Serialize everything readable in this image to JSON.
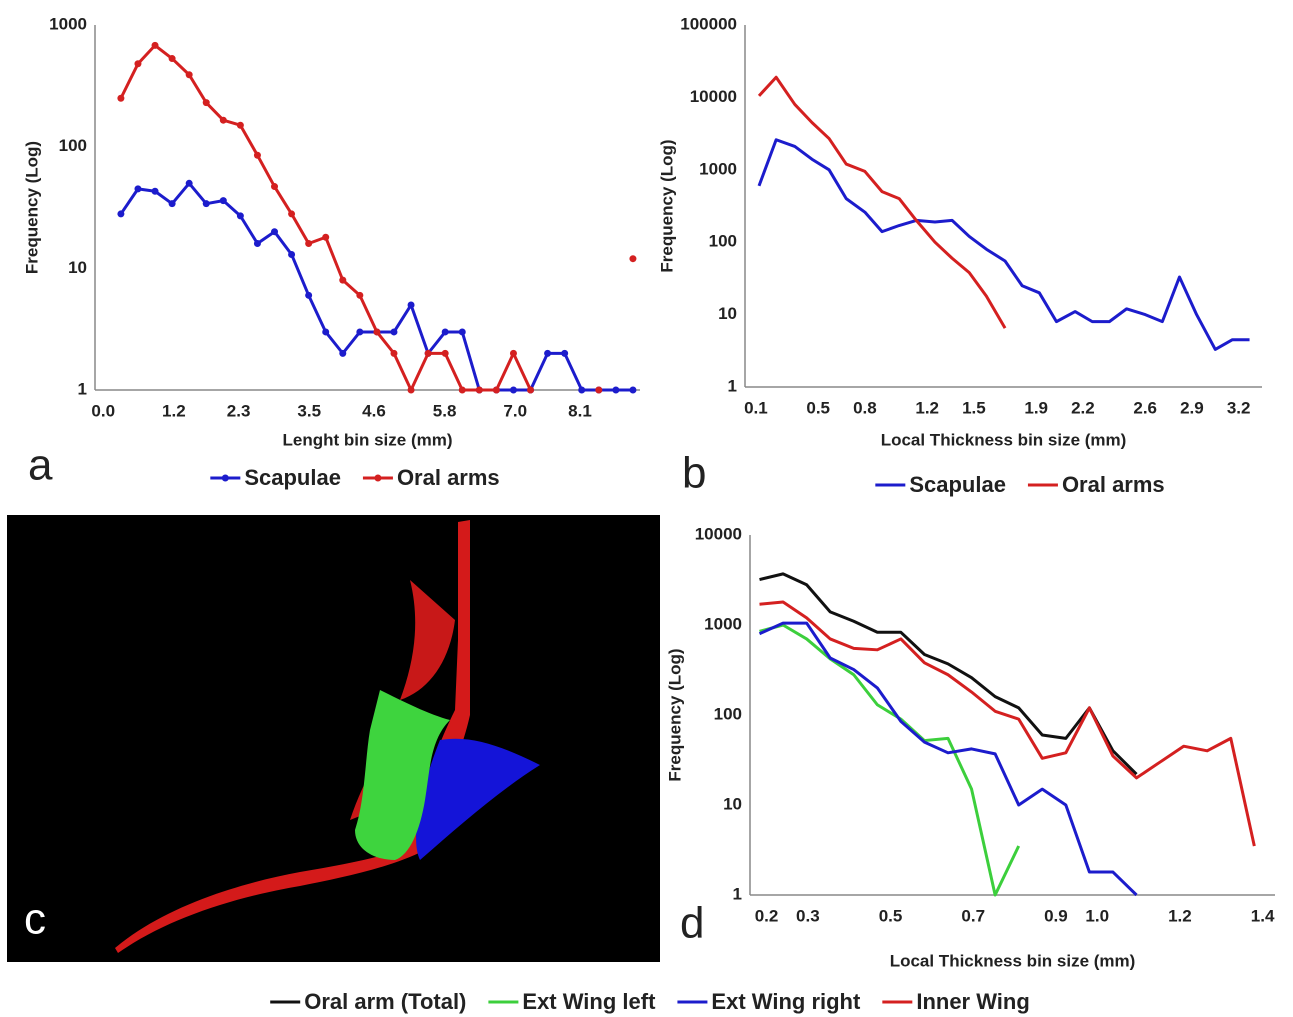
{
  "chart_data": [
    {
      "type": "line",
      "panel_label": "a",
      "y_label": "Frequency (Log)",
      "x_label": "Lenght bin size (mm)",
      "log_y": true,
      "markers": true,
      "x": [
        0.3,
        0.59,
        0.88,
        1.17,
        1.46,
        1.75,
        2.04,
        2.33,
        2.62,
        2.91,
        3.2,
        3.49,
        3.78,
        4.07,
        4.36,
        4.65,
        4.94,
        5.23,
        5.52,
        5.81,
        6.1,
        6.39,
        6.68,
        6.97,
        7.26,
        7.55,
        7.84,
        8.13,
        8.42,
        8.71,
        9.0
      ],
      "series": [
        {
          "name": "Scapulae",
          "color": "#1c1ccc",
          "values": [
            28,
            45,
            43,
            34,
            50,
            34,
            36,
            27,
            16,
            20,
            13,
            6,
            3,
            2,
            3,
            3,
            3,
            5,
            2,
            3,
            3,
            1,
            1,
            1,
            1,
            2,
            2,
            1,
            1,
            1,
            1
          ]
        },
        {
          "name": "Oral arms",
          "color": "#d42020",
          "values": [
            250,
            480,
            680,
            530,
            390,
            230,
            165,
            150,
            85,
            47,
            28,
            16,
            18,
            8,
            6,
            3,
            2,
            1,
            2,
            2,
            1,
            1,
            1,
            2,
            1,
            null,
            null,
            null,
            1,
            null,
            12
          ]
        }
      ],
      "xlim": [
        -0.14,
        9.12
      ],
      "ylim": [
        1,
        1000
      ],
      "xticks": [
        {
          "value": 0,
          "label": "0.0"
        },
        1.2,
        2.3,
        3.5,
        4.6,
        5.8,
        {
          "value": 7,
          "label": "7.0"
        },
        8.1
      ],
      "yticks": [
        1,
        10,
        100,
        1000
      ]
    },
    {
      "type": "line",
      "panel_label": "b",
      "y_label": "Frequency (Log)",
      "x_label": "Local Thickness bin size (mm)",
      "log_y": true,
      "markers": false,
      "x": [
        0.12,
        0.23,
        0.35,
        0.46,
        0.57,
        0.68,
        0.8,
        0.91,
        1.02,
        1.13,
        1.25,
        1.36,
        1.47,
        1.58,
        1.7,
        1.81,
        1.92,
        2.03,
        2.15,
        2.26,
        2.37,
        2.48,
        2.6,
        2.71,
        2.82,
        2.93,
        3.05,
        3.16,
        3.27
      ],
      "series": [
        {
          "name": "Scapulae",
          "color": "#1c1ccc",
          "values": [
            600,
            2600,
            2100,
            1400,
            1000,
            400,
            260,
            140,
            170,
            200,
            190,
            200,
            120,
            80,
            55,
            25,
            20,
            8,
            11,
            8,
            8,
            12,
            10,
            8,
            33,
            10,
            3.3,
            4.5,
            4.5
          ]
        },
        {
          "name": "Oral arms",
          "color": "#d42020",
          "values": [
            10500,
            19000,
            8000,
            4500,
            2700,
            1200,
            950,
            500,
            400,
            200,
            100,
            60,
            38,
            18,
            6.5,
            null,
            null,
            null,
            null,
            null,
            null,
            null,
            null,
            null,
            null,
            null,
            null,
            null,
            null
          ]
        }
      ],
      "xlim": [
        0.03,
        3.35
      ],
      "ylim": [
        1,
        100000
      ],
      "xticks": [
        0.1,
        0.5,
        0.8,
        1.2,
        1.5,
        1.9,
        2.2,
        2.6,
        2.9,
        3.2
      ],
      "yticks": [
        1,
        10,
        100,
        1000,
        10000,
        100000
      ]
    },
    {
      "type": "line",
      "panel_label": "d",
      "y_label": "Frequency (Log)",
      "x_label": "Local Thickness bin size (mm)",
      "log_y": true,
      "markers": false,
      "x": [
        0.183,
        0.24,
        0.297,
        0.354,
        0.411,
        0.468,
        0.525,
        0.582,
        0.639,
        0.696,
        0.753,
        0.81,
        0.867,
        0.924,
        0.981,
        1.038,
        1.095,
        1.152,
        1.209,
        1.266,
        1.323,
        1.38
      ],
      "series": [
        {
          "name": "Oral arm (Total)",
          "color": "#111111",
          "values": [
            3200,
            3700,
            2800,
            1400,
            1100,
            830,
            830,
            470,
            370,
            260,
            160,
            120,
            60,
            55,
            120,
            40,
            22,
            null,
            null,
            null,
            null,
            null
          ]
        },
        {
          "name": "Ext Wing left",
          "color": "#3ccf3c",
          "values": [
            850,
            1000,
            700,
            420,
            280,
            130,
            90,
            52,
            55,
            15,
            1,
            3.5,
            null,
            null,
            null,
            null,
            null,
            null,
            null,
            null,
            null,
            null
          ]
        },
        {
          "name": "Ext Wing right",
          "color": "#1c1ccc",
          "values": [
            800,
            1050,
            1050,
            430,
            320,
            200,
            85,
            50,
            38,
            42,
            37,
            10,
            15,
            10,
            1.8,
            1.8,
            1,
            null,
            null,
            null,
            null,
            null
          ]
        },
        {
          "name": "Inner Wing",
          "color": "#d42020",
          "values": [
            1700,
            1800,
            1200,
            700,
            550,
            530,
            700,
            380,
            280,
            180,
            110,
            90,
            33,
            38,
            120,
            35,
            20,
            30,
            45,
            40,
            55,
            3.5
          ]
        }
      ],
      "xlim": [
        0.16,
        1.43
      ],
      "ylim": [
        1,
        10000
      ],
      "xticks": [
        0.2,
        0.3,
        0.5,
        0.7,
        0.9,
        {
          "value": 1,
          "label": "1.0"
        },
        1.2,
        1.4
      ],
      "yticks": [
        1,
        10,
        100,
        1000,
        10000
      ]
    }
  ],
  "image_panel": {
    "panel_label": "c"
  }
}
